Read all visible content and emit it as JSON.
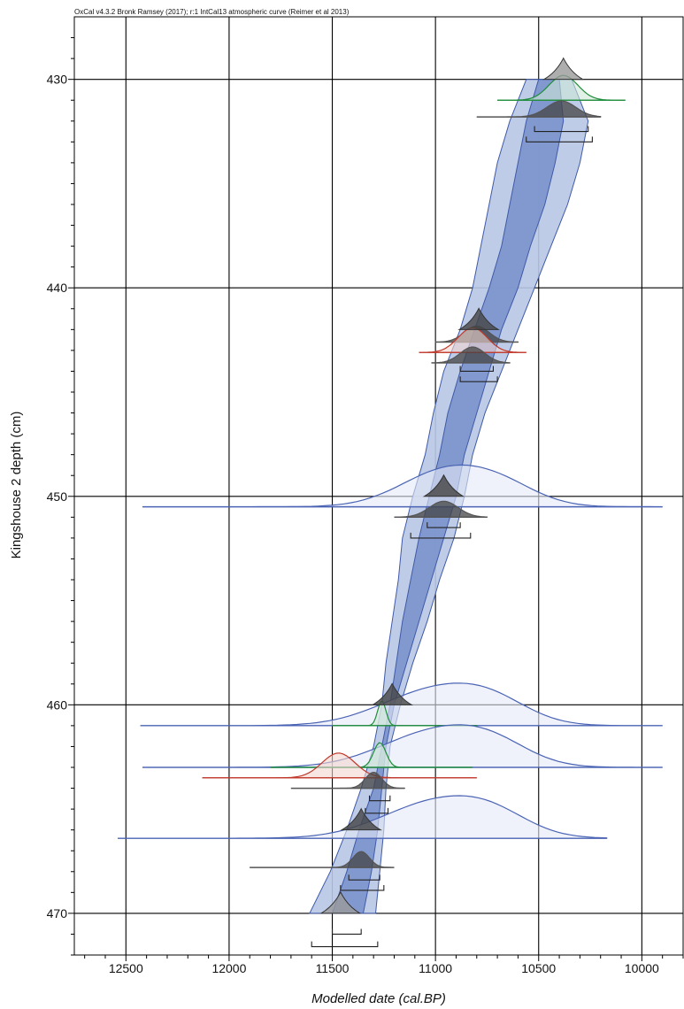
{
  "header": "OxCal v4.3.2 Bronk Ramsey (2017); r:1 IntCal13 atmospheric curve (Reimer et al 2013)",
  "chart_data": {
    "type": "age-depth model",
    "xlabel": "Modelled date (cal.BP)",
    "ylabel": "Kingshouse 2 depth (cm)",
    "x_range_reversed": [
      12750,
      9800
    ],
    "y_range": [
      427,
      472
    ],
    "x_ticks": [
      12500,
      12000,
      11500,
      11000,
      10500,
      10000
    ],
    "y_ticks": [
      430,
      440,
      450,
      460,
      470
    ],
    "grid": true,
    "colors": {
      "envelope_95": "#b8c6e6",
      "envelope_68": "#7b93cc",
      "envelope_stroke": "#3f5aa8",
      "posterior_black": "#555555",
      "date_blue": "#4a63b4",
      "date_red": "#c0392b",
      "date_green": "#1e8c3a"
    },
    "model_envelope": {
      "depth": [
        430,
        432,
        434,
        436,
        438,
        440,
        442,
        444,
        446,
        448,
        450,
        452,
        454,
        456,
        458,
        460,
        462,
        464,
        466,
        468,
        470
      ],
      "range95_older": [
        10560,
        10640,
        10700,
        10740,
        10780,
        10820,
        10880,
        10960,
        11010,
        11050,
        11110,
        11160,
        11180,
        11210,
        11240,
        11260,
        11300,
        11360,
        11430,
        11510,
        11610
      ],
      "range95_younger": [
        10340,
        10260,
        10300,
        10360,
        10440,
        10520,
        10600,
        10680,
        10760,
        10820,
        10860,
        10910,
        10980,
        11040,
        11110,
        11170,
        11220,
        11240,
        11250,
        11270,
        11290
      ],
      "range68_older": [
        10500,
        10560,
        10600,
        10640,
        10680,
        10740,
        10810,
        10880,
        10940,
        10980,
        11030,
        11080,
        11120,
        11160,
        11190,
        11220,
        11260,
        11300,
        11370,
        11430,
        11500
      ],
      "range68_younger": [
        10400,
        10380,
        10420,
        10470,
        10540,
        10600,
        10680,
        10740,
        10800,
        10860,
        10900,
        10960,
        11020,
        11080,
        11140,
        11200,
        11240,
        11260,
        11280,
        11310,
        11350
      ]
    },
    "dated_levels": [
      {
        "depth": 431,
        "color": "green",
        "mean": 10380,
        "sd": 70,
        "range": [
          10700,
          10080
        ]
      },
      {
        "depth": 431.8,
        "color": "black",
        "mean": 10390,
        "sd": 70,
        "range": [
          10800,
          10200
        ]
      },
      {
        "depth": 442.6,
        "color": "black",
        "mean": 10800,
        "sd": 60,
        "range": [
          11000,
          10600
        ]
      },
      {
        "depth": 443.1,
        "color": "red",
        "mean": 10820,
        "sd": 70,
        "range": [
          11080,
          10560
        ]
      },
      {
        "depth": 443.6,
        "color": "black",
        "mean": 10820,
        "sd": 60,
        "range": [
          11020,
          10640
        ]
      },
      {
        "depth": 450.5,
        "color": "blue",
        "mean": 10950,
        "sd": 220,
        "range": [
          12420,
          9900
        ]
      },
      {
        "depth": 451,
        "color": "black",
        "mean": 10960,
        "sd": 70,
        "range": [
          11200,
          10750
        ]
      },
      {
        "depth": 461,
        "color": "blue",
        "mean": 11000,
        "sd": 260,
        "range": [
          12430,
          9900
        ]
      },
      {
        "depth": 461,
        "color": "green",
        "mean": 11260,
        "sd": 20,
        "range": [
          11500,
          10800
        ]
      },
      {
        "depth": 463,
        "color": "blue",
        "mean": 11000,
        "sd": 260,
        "range": [
          12420,
          9900
        ]
      },
      {
        "depth": 463,
        "color": "green",
        "mean": 11270,
        "sd": 30,
        "range": [
          11800,
          10820
        ]
      },
      {
        "depth": 463.5,
        "color": "red",
        "mean": 11470,
        "sd": 80,
        "range": [
          12130,
          10800
        ]
      },
      {
        "depth": 464,
        "color": "black",
        "mean": 11300,
        "sd": 40,
        "range": [
          11700,
          11150
        ]
      },
      {
        "depth": 466.4,
        "color": "blue",
        "mean": 11000,
        "sd": 260,
        "range": [
          12540,
          10170
        ]
      },
      {
        "depth": 467.8,
        "color": "black",
        "mean": 11360,
        "sd": 40,
        "range": [
          11900,
          11200
        ]
      }
    ],
    "posterior_peaks": [
      {
        "depth": 430,
        "mean": 10380
      },
      {
        "depth": 442,
        "mean": 10790
      },
      {
        "depth": 450,
        "mean": 10960
      },
      {
        "depth": 460,
        "mean": 11210
      },
      {
        "depth": 466,
        "mean": 11360
      },
      {
        "depth": 470,
        "mean": 11460
      }
    ],
    "ranges68": [
      {
        "depth": 432.5,
        "range": [
          10520,
          10260
        ]
      },
      {
        "depth": 433.0,
        "range": [
          10560,
          10240
        ]
      },
      {
        "depth": 444.0,
        "range": [
          10880,
          10720
        ]
      },
      {
        "depth": 444.5,
        "range": [
          10880,
          10700
        ]
      },
      {
        "depth": 451.5,
        "range": [
          11040,
          10880
        ]
      },
      {
        "depth": 452.0,
        "range": [
          11120,
          10830
        ]
      },
      {
        "depth": 464.6,
        "range": [
          11320,
          11220
        ]
      },
      {
        "depth": 465.2,
        "range": [
          11340,
          11230
        ]
      },
      {
        "depth": 468.4,
        "range": [
          11420,
          11270
        ]
      },
      {
        "depth": 468.9,
        "range": [
          11460,
          11250
        ]
      },
      {
        "depth": 471.0,
        "range": [
          11500,
          11360
        ]
      },
      {
        "depth": 471.6,
        "range": [
          11600,
          11280
        ]
      }
    ]
  }
}
